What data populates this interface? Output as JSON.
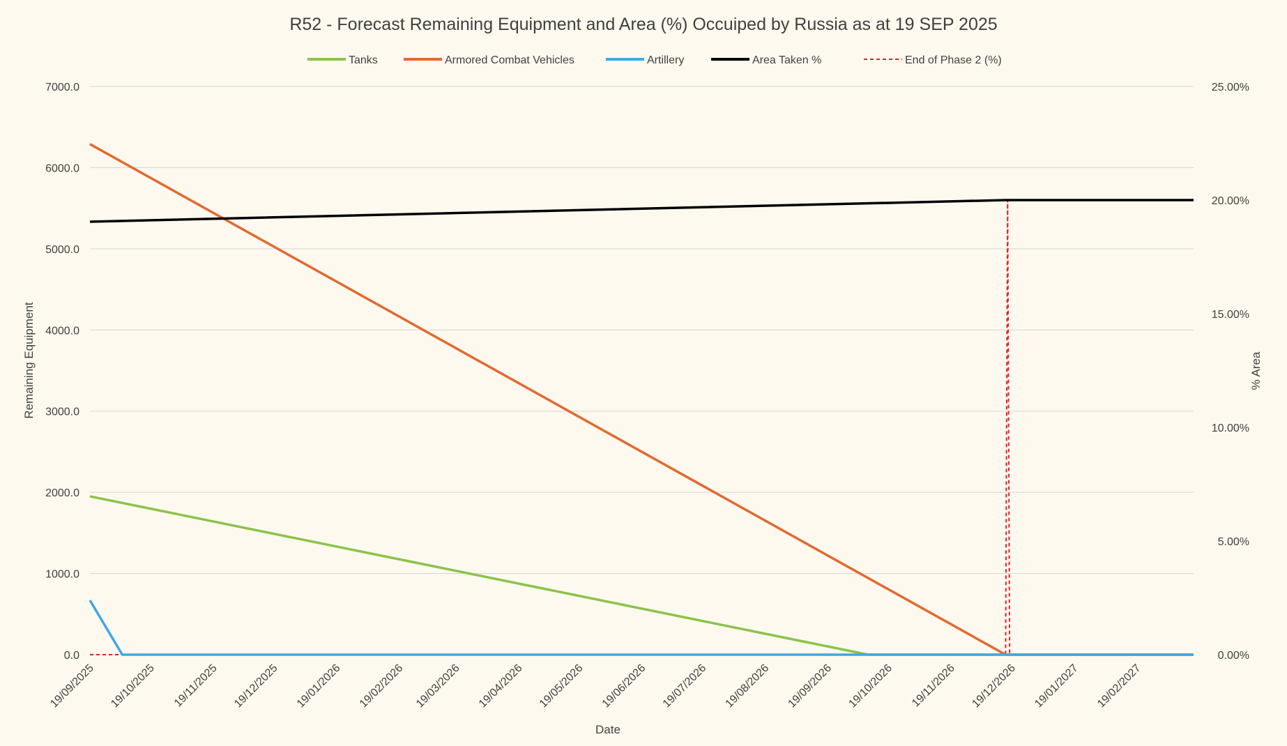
{
  "chart_data": {
    "type": "line",
    "title": "R52 - Forecast Remaining Equipment and Area (%) Occuiped by Russia as at 19 SEP 2025",
    "xlabel": "Date",
    "ylabel": "Remaining Equipment",
    "y2label": "% Area",
    "ylim": [
      0,
      7000
    ],
    "y2lim": [
      0,
      25
    ],
    "y_ticks": [
      "0.0",
      "1000.0",
      "2000.0",
      "3000.0",
      "4000.0",
      "5000.0",
      "6000.0",
      "7000.0"
    ],
    "y2_ticks": [
      "0.00%",
      "5.00%",
      "10.00%",
      "15.00%",
      "20.00%",
      "25.00%"
    ],
    "x_range": [
      "2025-09-19",
      "2027-03-19"
    ],
    "x_ticks": [
      {
        "date": "2025-09-19",
        "label": "19/09/2025"
      },
      {
        "date": "2025-10-19",
        "label": "19/10/2025"
      },
      {
        "date": "2025-11-19",
        "label": "19/11/2025"
      },
      {
        "date": "2025-12-19",
        "label": "19/12/2025"
      },
      {
        "date": "2026-01-19",
        "label": "19/01/2026"
      },
      {
        "date": "2026-02-19",
        "label": "19/02/2026"
      },
      {
        "date": "2026-03-19",
        "label": "19/03/2026"
      },
      {
        "date": "2026-04-19",
        "label": "19/04/2026"
      },
      {
        "date": "2026-05-19",
        "label": "19/05/2026"
      },
      {
        "date": "2026-06-19",
        "label": "19/06/2026"
      },
      {
        "date": "2026-07-19",
        "label": "19/07/2026"
      },
      {
        "date": "2026-08-19",
        "label": "19/08/2026"
      },
      {
        "date": "2026-09-19",
        "label": "19/09/2026"
      },
      {
        "date": "2026-10-19",
        "label": "19/10/2026"
      },
      {
        "date": "2026-11-19",
        "label": "19/11/2026"
      },
      {
        "date": "2026-12-19",
        "label": "19/12/2026"
      },
      {
        "date": "2027-01-19",
        "label": "19/01/2027"
      },
      {
        "date": "2027-02-19",
        "label": "19/02/2027"
      }
    ],
    "grid": true,
    "legend_position": "top",
    "series": [
      {
        "name": "Tanks",
        "axis": "left",
        "color": "#8bc34a",
        "dash": false,
        "points": [
          [
            "2025-09-19",
            1950
          ],
          [
            "2026-10-09",
            0
          ],
          [
            "2027-03-19",
            0
          ]
        ]
      },
      {
        "name": "Armored Combat Vehicles",
        "axis": "left",
        "color": "#e2692f",
        "dash": false,
        "points": [
          [
            "2025-09-19",
            6290
          ],
          [
            "2026-12-16",
            0
          ],
          [
            "2027-03-19",
            0
          ]
        ]
      },
      {
        "name": "Artillery",
        "axis": "left",
        "color": "#3ea8e4",
        "dash": false,
        "points": [
          [
            "2025-09-19",
            670
          ],
          [
            "2025-10-05",
            0
          ],
          [
            "2027-03-19",
            0
          ]
        ]
      },
      {
        "name": "Area Taken %",
        "axis": "right",
        "color": "#000000",
        "dash": false,
        "points": [
          [
            "2025-09-19",
            19.05
          ],
          [
            "2026-12-16",
            20.0
          ],
          [
            "2027-03-19",
            20.0
          ]
        ]
      },
      {
        "name": "End of Phase 2 (%)",
        "axis": "right",
        "color": "#e0202a",
        "dash": true,
        "points": [
          [
            "2025-09-19",
            0
          ],
          [
            "2026-12-16",
            0
          ],
          [
            "2026-12-17",
            20.0
          ],
          [
            "2026-12-18",
            0
          ],
          [
            "2027-03-19",
            0
          ]
        ]
      }
    ]
  }
}
